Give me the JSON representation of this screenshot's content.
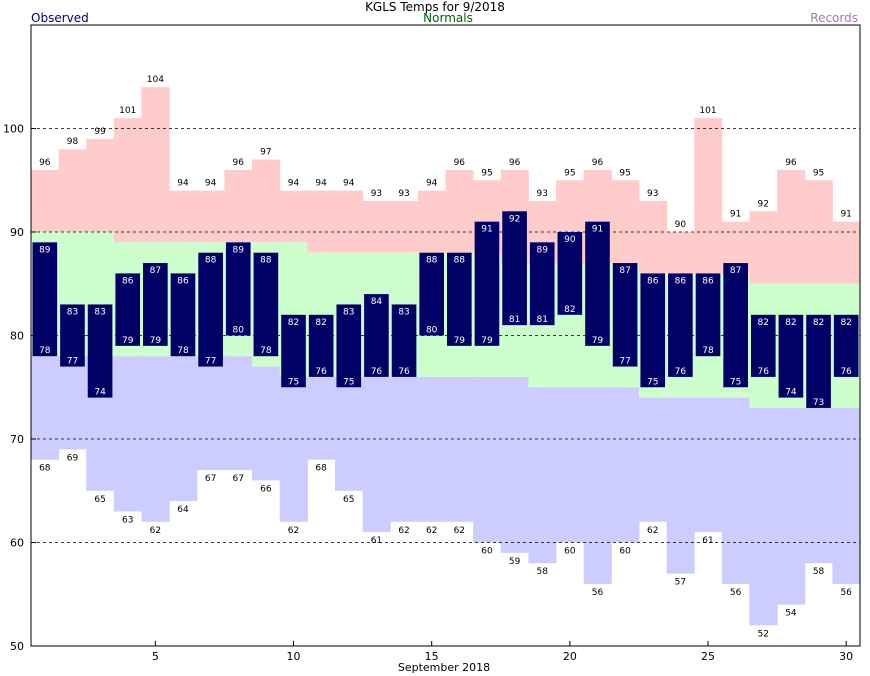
{
  "chart_data": {
    "type": "bar",
    "title": "KGLS Temps for 9/2018",
    "xlabel": "September 2018",
    "ylabel": "",
    "xlim": [
      1,
      30
    ],
    "ylim": [
      50,
      110
    ],
    "y_ticks": [
      50,
      60,
      70,
      80,
      90,
      100
    ],
    "x_ticks": [
      5,
      10,
      15,
      20,
      25,
      30
    ],
    "grid": "dashed horizontal lines at 60, 70, 80, 90, 100",
    "legend": {
      "observed": "Observed",
      "normals": "Normals",
      "records": "Records"
    },
    "colors": {
      "observed": "#000066",
      "normals_band": "#ccffcc",
      "record_high_band": "#ffcccc",
      "record_low_band": "#ccccff",
      "observed_label": "#000080",
      "normals_label": "#006400",
      "records_label": "#b070c0"
    },
    "days": [
      1,
      2,
      3,
      4,
      5,
      6,
      7,
      8,
      9,
      10,
      11,
      12,
      13,
      14,
      15,
      16,
      17,
      18,
      19,
      20,
      21,
      22,
      23,
      24,
      25,
      26,
      27,
      28,
      29,
      30
    ],
    "observed_high": [
      89,
      83,
      83,
      86,
      87,
      86,
      88,
      89,
      88,
      82,
      82,
      83,
      84,
      83,
      88,
      88,
      91,
      92,
      89,
      90,
      91,
      87,
      86,
      86,
      86,
      87,
      82,
      82,
      82,
      82
    ],
    "observed_low": [
      78,
      77,
      74,
      79,
      79,
      78,
      77,
      80,
      78,
      75,
      76,
      75,
      76,
      76,
      80,
      79,
      79,
      81,
      81,
      82,
      79,
      77,
      75,
      76,
      78,
      75,
      76,
      74,
      73,
      76
    ],
    "normal_high": [
      90,
      90,
      90,
      89,
      89,
      89,
      89,
      89,
      89,
      89,
      88,
      88,
      88,
      88,
      88,
      88,
      88,
      87,
      87,
      87,
      87,
      87,
      86,
      86,
      86,
      86,
      85,
      85,
      85,
      85
    ],
    "normal_low": [
      78,
      78,
      78,
      78,
      78,
      78,
      78,
      78,
      77,
      76,
      76,
      76,
      76,
      76,
      76,
      76,
      76,
      76,
      75,
      75,
      75,
      75,
      74,
      74,
      74,
      74,
      73,
      73,
      73,
      73
    ],
    "record_high": [
      96,
      98,
      99,
      101,
      104,
      94,
      94,
      96,
      97,
      94,
      94,
      94,
      93,
      93,
      94,
      96,
      95,
      96,
      93,
      95,
      96,
      95,
      93,
      90,
      101,
      91,
      92,
      96,
      95,
      91
    ],
    "record_low": [
      68,
      69,
      65,
      63,
      62,
      64,
      67,
      67,
      66,
      62,
      68,
      65,
      61,
      62,
      62,
      62,
      60,
      59,
      58,
      60,
      56,
      60,
      62,
      57,
      61,
      56,
      52,
      54,
      58,
      56
    ]
  }
}
